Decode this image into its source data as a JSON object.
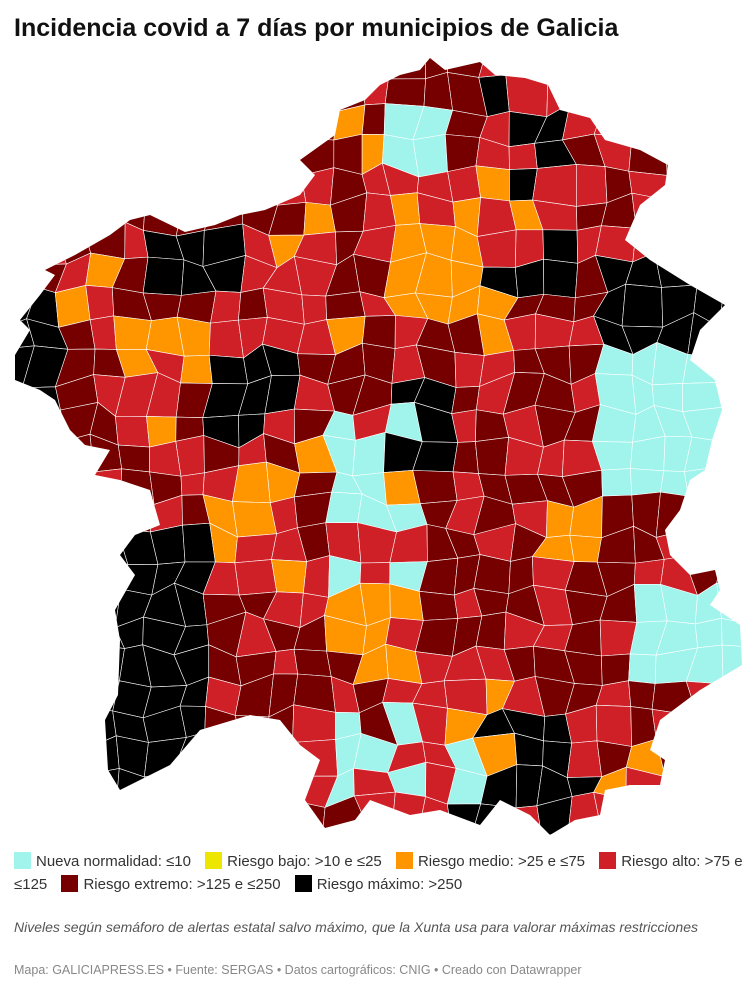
{
  "title": "Incidencia covid a 7 días por municipios de Galicia",
  "legend": [
    {
      "label": "Nueva normalidad: ≤10",
      "color": "#a0f4ec"
    },
    {
      "label": "Riesgo bajo: >10 e ≤25",
      "color": "#ede600"
    },
    {
      "label": "Riesgo medio: >25 e ≤75",
      "color": "#ff9600"
    },
    {
      "label": "Riesgo alto: >75 e ≤125",
      "color": "#cf2027"
    },
    {
      "label": "Riesgo extremo: >125 e ≤250",
      "color": "#760000"
    },
    {
      "label": "Riesgo máximo: >250",
      "color": "#000000"
    }
  ],
  "note": "Niveles según semáforo de alertas estatal salvo máximo, que la Xunta usa para valorar máximas restricciones",
  "footer": "Mapa: GALICIAPRESS.ES • Fuente: SERGAS • Datos cartográficos: CNIG • Creado con Datawrapper"
}
